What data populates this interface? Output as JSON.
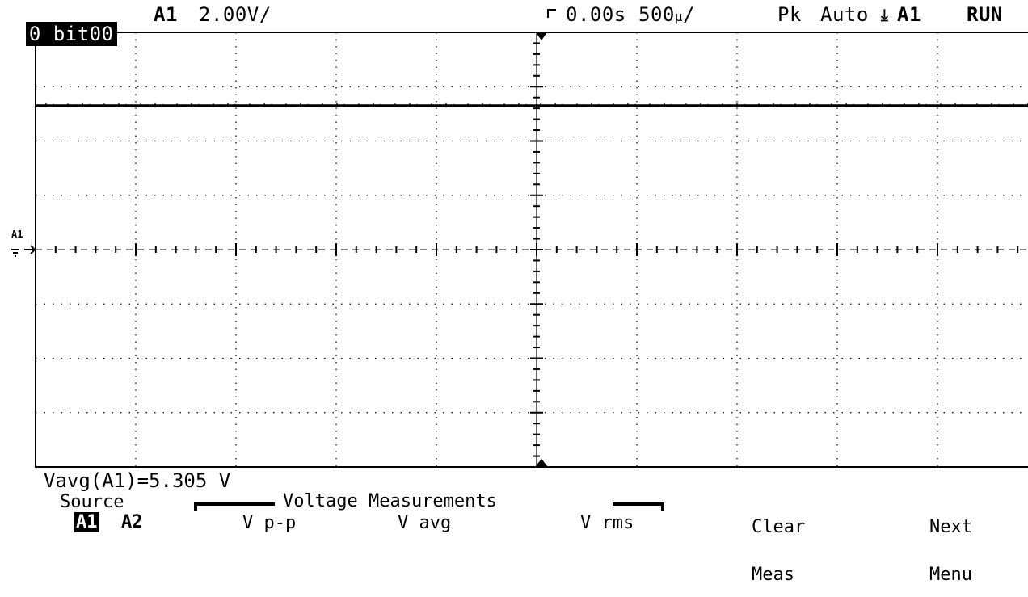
{
  "status_bar": {
    "memory": "0",
    "setup_name": "bit00",
    "channel": "A1",
    "volts_per_div": "2.00V/",
    "trigger_time": "0.00s",
    "time_per_div_value": "500",
    "time_per_div_unit": "µ",
    "time_per_div_slash": "/",
    "acq_mode": "Pk",
    "trigger_mode": "Auto",
    "trigger_channel": "A1",
    "run_state": "RUN"
  },
  "channel_marker": {
    "label": "A1"
  },
  "readout": {
    "text": "Vavg(A1)=5.305 V"
  },
  "softkeys": {
    "source_label": "Source",
    "source_a1": "A1",
    "source_a2": "A2",
    "group_title": "Voltage Measurements",
    "vpp": "V p-p",
    "vavg": "V avg",
    "vrms": "V rms",
    "clear_line1": "Clear",
    "clear_line2": "Meas",
    "next_line1": "Next",
    "next_line2": "Menu"
  },
  "chart_data": {
    "type": "line",
    "xlim": [
      0,
      10
    ],
    "ylim": [
      -4,
      4
    ],
    "grid": true,
    "series": [
      {
        "x": [
          0,
          10
        ],
        "y": [
          2.65,
          2.65
        ]
      }
    ]
  },
  "colors": {
    "background": "#ffffff",
    "trace": "#000000",
    "grid": "#000000"
  }
}
